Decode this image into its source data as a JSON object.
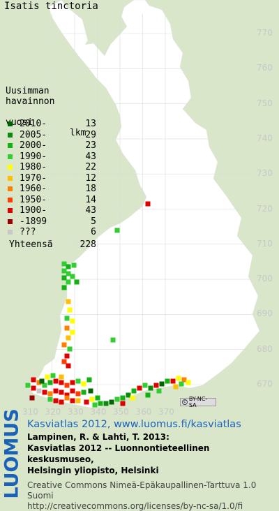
{
  "title": "Isatis tinctoria",
  "legend": {
    "header_line1": "Uusimman",
    "header_line2": "havainnon",
    "header_line3_left": "vuosi",
    "header_line3_right": "lkm",
    "items": [
      {
        "label": "2010-",
        "count": "13",
        "color": "#006400"
      },
      {
        "label": "2005-",
        "count": "29",
        "color": "#0b8a0b"
      },
      {
        "label": "2000-",
        "count": "23",
        "color": "#13b213"
      },
      {
        "label": "1990-",
        "count": "43",
        "color": "#33cc33"
      },
      {
        "label": "1980-",
        "count": "22",
        "color": "#ffff00"
      },
      {
        "label": "1970-",
        "count": "12",
        "color": "#ffbf00"
      },
      {
        "label": "1960-",
        "count": "18",
        "color": "#ff7f00"
      },
      {
        "label": "1950-",
        "count": "14",
        "color": "#ff3f00"
      },
      {
        "label": "1900-",
        "count": "43",
        "color": "#e00000"
      },
      {
        "label": "-1899",
        "count": "5",
        "color": "#990000"
      },
      {
        "label": "???",
        "count": "6",
        "color": "#c8c8c8"
      }
    ],
    "total_label": "Yhteensä",
    "total_count": "228"
  },
  "grid_labels_y": [
    "770",
    "760",
    "750",
    "740",
    "730",
    "720",
    "710",
    "700",
    "690",
    "680",
    "670"
  ],
  "grid_labels_x": [
    "310",
    "320",
    "330",
    "340",
    "350",
    "360",
    "370"
  ],
  "license_badge": "BY-NC-SA",
  "logo_text": "LUOMUS",
  "credits": {
    "site": "Kasviatlas 2012, www.luomus.fi/kasviatlas",
    "ref_line1": "Lampinen, R. & Lahti, T. 2013:",
    "ref_line2": "Kasviatlas 2012 -- Luonnontieteellinen keskusmuseo,",
    "ref_line3": "Helsingin yliopisto, Helsinki",
    "license_line1": "Creative Commons Nimeä-Epäkaupallinen-Tarttuva 1.0 Suomi",
    "license_line2": "http://creativecommons.org/licenses/by-nc-sa/1.0/fi"
  },
  "colors": {
    "background": "#d9e6c9",
    "land": "#ffffff",
    "grid": "#dcdcdc",
    "luomus_blue": "#1a62b8"
  }
}
